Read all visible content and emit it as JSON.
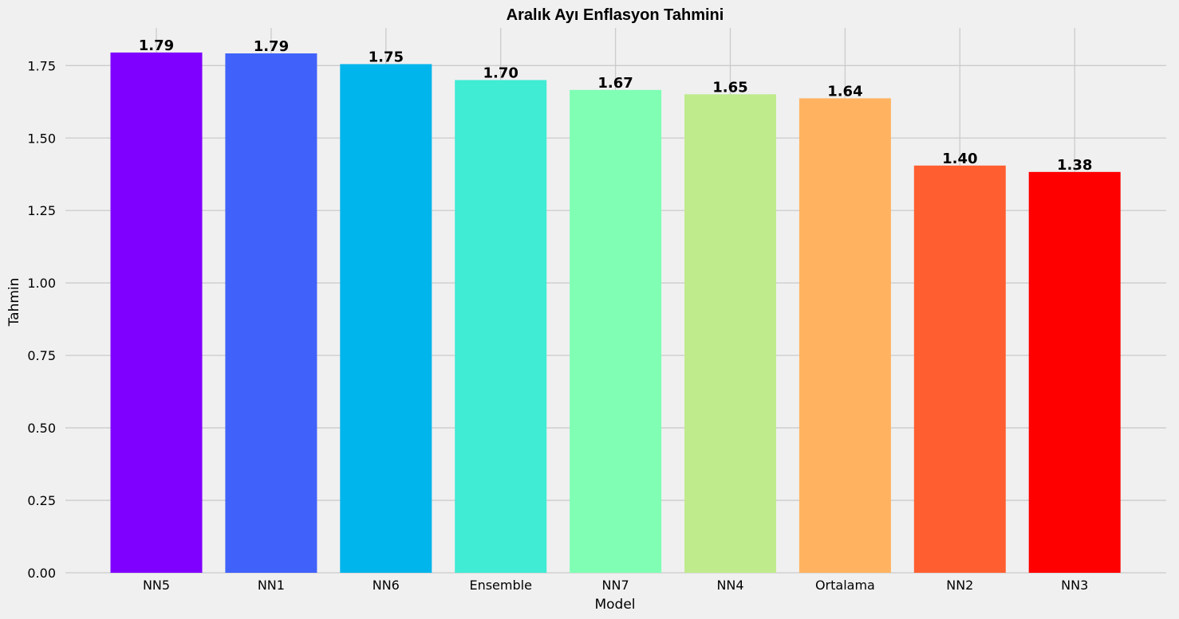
{
  "chart_data": {
    "type": "bar",
    "title": "Aralık Ayı Enflasyon Tahmini",
    "xlabel": "Model",
    "ylabel": "Tahmin",
    "categories": [
      "NN5",
      "NN1",
      "NN6",
      "Ensemble",
      "NN7",
      "NN4",
      "Ortalama",
      "NN2",
      "NN3"
    ],
    "values": [
      1.795,
      1.792,
      1.755,
      1.7,
      1.666,
      1.651,
      1.637,
      1.405,
      1.383
    ],
    "data_labels": [
      "1.79",
      "1.79",
      "1.75",
      "1.70",
      "1.67",
      "1.65",
      "1.64",
      "1.40",
      "1.38"
    ],
    "colors": [
      "#8000ff",
      "#4062fa",
      "#00b5eb",
      "#40ecd4",
      "#80ffb4",
      "#c0eb8d",
      "#ffb360",
      "#ff5f30",
      "#ff0000"
    ],
    "ylim": [
      0,
      1.88
    ],
    "yticks": [
      0,
      0.25,
      0.5,
      0.75,
      1.0,
      1.25,
      1.5,
      1.75
    ],
    "ytick_labels": [
      "0.00",
      "0.25",
      "0.50",
      "0.75",
      "1.00",
      "1.25",
      "1.50",
      "1.75"
    ],
    "grid": true,
    "background": "#f0f0f0",
    "grid_color": "#cbcbcb"
  }
}
